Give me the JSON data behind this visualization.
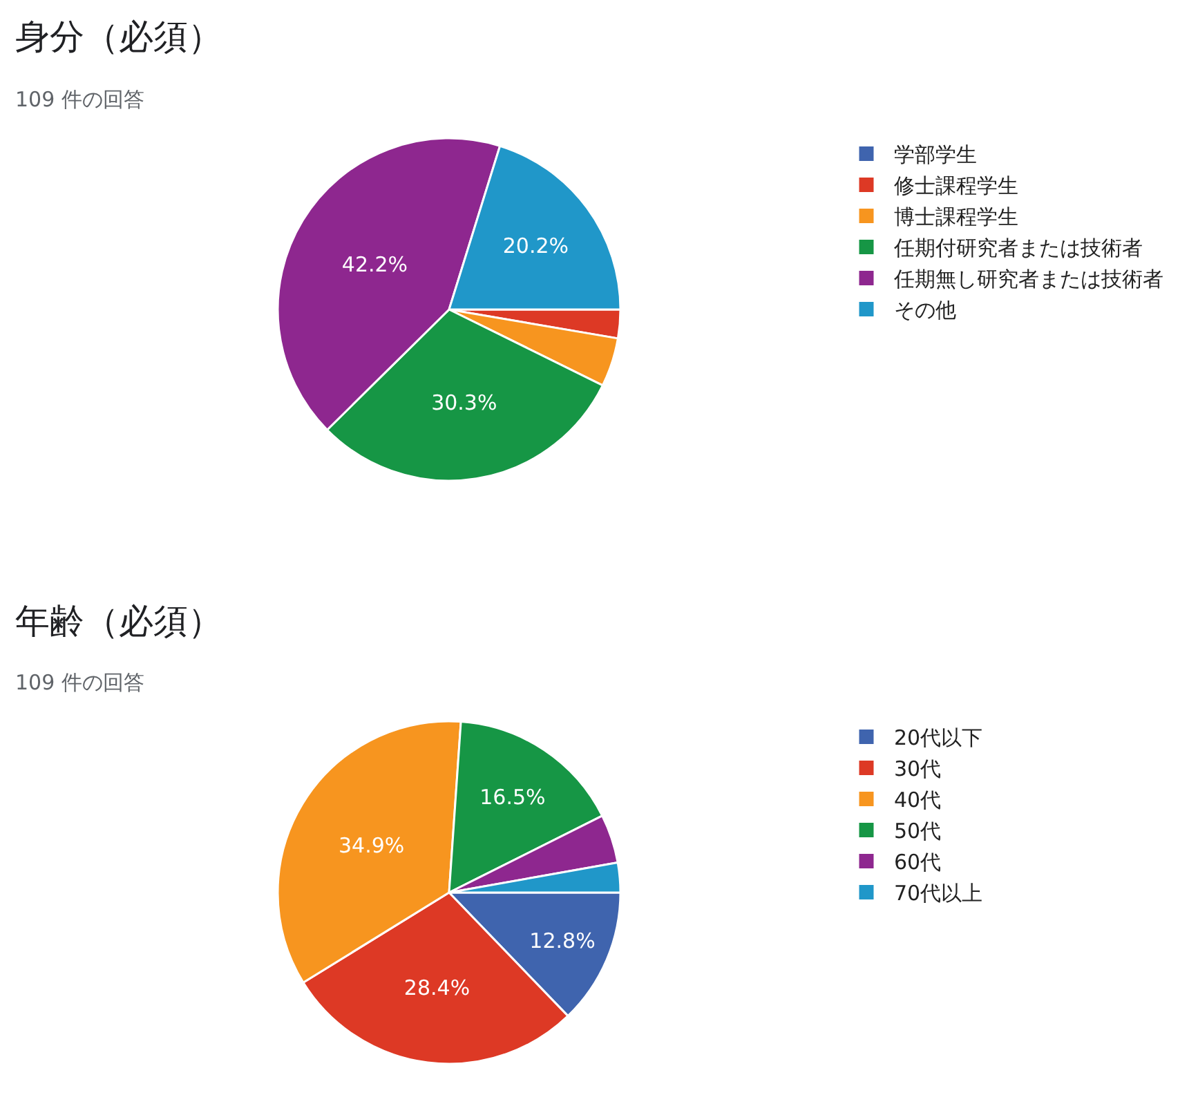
{
  "chart_data": [
    {
      "type": "pie",
      "title": "身分（必須）",
      "subtitle": "109 件の回答",
      "categories": [
        "学部学生",
        "修士課程学生",
        "博士課程学生",
        "任期付研究者または技術者",
        "任期無し研究者または技術者",
        "その他"
      ],
      "values": [
        0,
        2.7,
        4.6,
        30.3,
        42.2,
        20.2
      ],
      "colors": [
        "#3f64ae",
        "#dd3925",
        "#f7951f",
        "#169645",
        "#8e278f",
        "#2097c9"
      ],
      "value_labels": [
        null,
        null,
        null,
        "30.3%",
        "42.2%",
        "20.2%"
      ],
      "legend": "top right"
    },
    {
      "type": "pie",
      "title": "年齢（必須）",
      "subtitle": "109 件の回答",
      "categories": [
        "20代以下",
        "30代",
        "40代",
        "50代",
        "60代",
        "70代以上"
      ],
      "values": [
        12.8,
        28.4,
        34.9,
        16.5,
        4.6,
        2.8
      ],
      "colors": [
        "#3f64ae",
        "#dd3925",
        "#f7951f",
        "#169645",
        "#8e278f",
        "#2097c9"
      ],
      "value_labels": [
        "12.8%",
        "28.4%",
        "34.9%",
        "16.5%",
        null,
        null
      ],
      "legend": "top right"
    }
  ]
}
